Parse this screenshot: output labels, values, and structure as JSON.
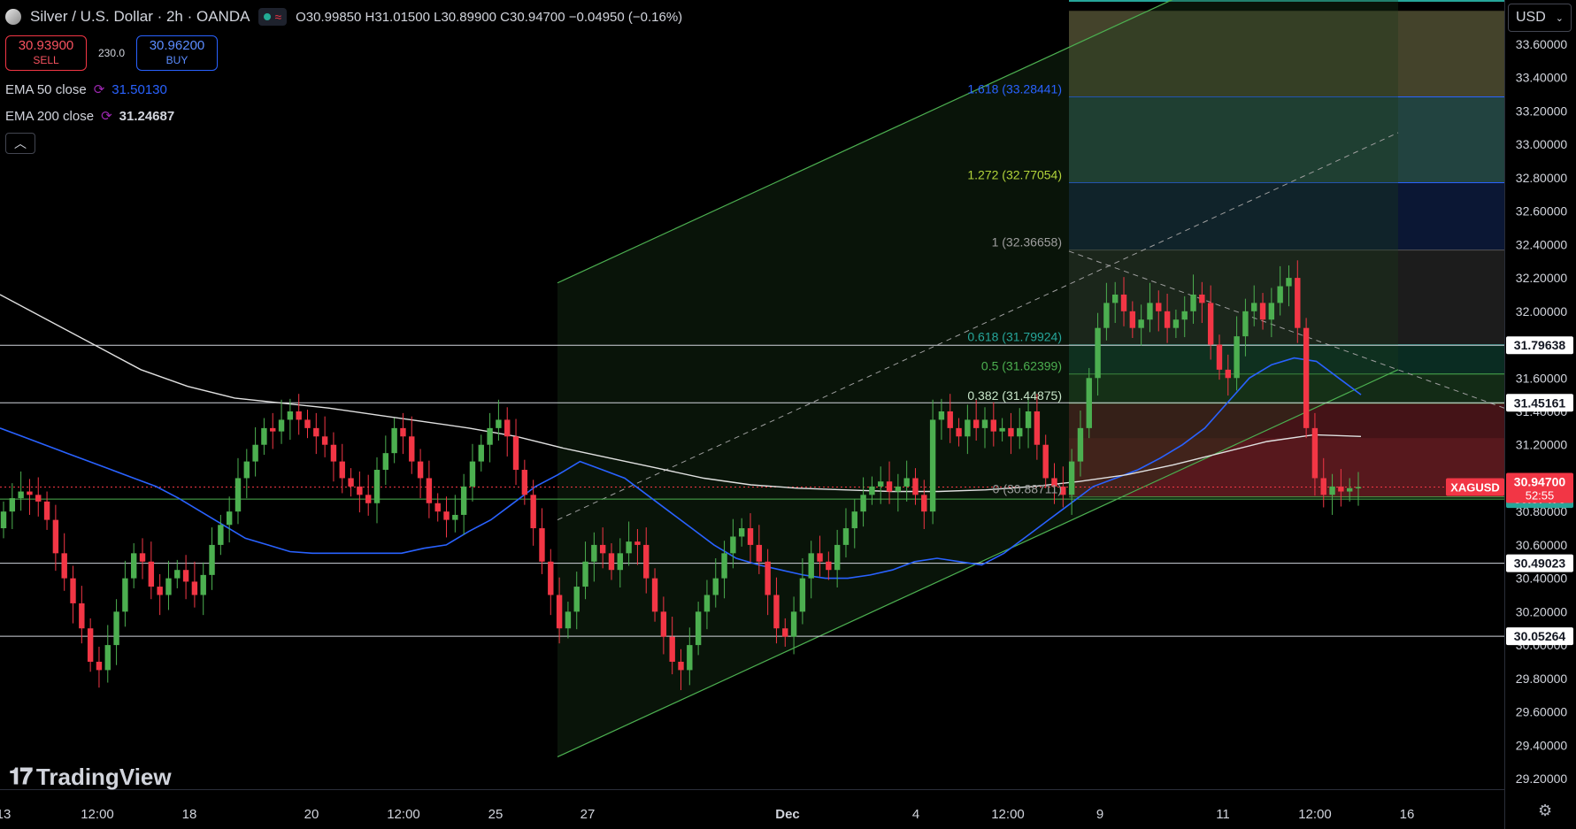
{
  "header": {
    "title": "Silver / U.S. Dollar · 2h · OANDA",
    "ohlc": "O30.99850 H31.01500 L30.89900 C30.94700 −0.04950 (−0.16%)"
  },
  "trade": {
    "sell_price": "30.93900",
    "sell_label": "SELL",
    "spread": "230.0",
    "buy_price": "30.96200",
    "buy_label": "BUY"
  },
  "indicators": [
    {
      "label": "EMA 50 close",
      "value": "31.50130"
    },
    {
      "label": "EMA 200 close",
      "value": "31.24687"
    }
  ],
  "currency": "USD",
  "brand": "TradingView",
  "colors": {
    "up": "#4caf50",
    "down": "#f23645",
    "ema50": "#2962ff",
    "ema200": "#e0e0e0",
    "channel": "#4caf50",
    "price_tag": "#f23645",
    "green_tag": "#26a69a"
  },
  "chart_data": {
    "type": "candlestick",
    "symbol": "XAGUSD",
    "timeframe": "2h",
    "ylim": [
      29.05,
      33.8
    ],
    "y_ticks": [
      "33.60000",
      "33.40000",
      "33.20000",
      "33.00000",
      "32.80000",
      "32.60000",
      "32.40000",
      "32.20000",
      "32.00000",
      "31.80000",
      "31.60000",
      "31.40000",
      "31.20000",
      "31.00000",
      "30.80000",
      "30.60000",
      "30.40000",
      "30.20000",
      "30.00000",
      "29.80000",
      "29.60000",
      "29.40000",
      "29.20000"
    ],
    "x_ticks": [
      "13",
      "12:00",
      "18",
      "20",
      "12:00",
      "25",
      "27",
      "Dec",
      "4",
      "12:00",
      "9",
      "11",
      "12:00",
      "16"
    ],
    "horizontal_levels": [
      "31.79638",
      "31.45161",
      "30.49023",
      "30.05264"
    ],
    "fibonacci": [
      {
        "label": "1.618 (33.28441)",
        "value": 33.28441
      },
      {
        "label": "1.272 (32.77054)",
        "value": 32.77054
      },
      {
        "label": "1 (32.36658)",
        "value": 32.36658
      },
      {
        "label": "0.618 (31.79924)",
        "value": 31.79924
      },
      {
        "label": "0.5 (31.62399)",
        "value": 31.62399
      },
      {
        "label": "0.382 (31.44875)",
        "value": 31.44875
      },
      {
        "label": "0 (30.88711)",
        "value": 30.88711
      }
    ],
    "price_tags": [
      {
        "label": "XAGUSD",
        "price": "30.94700",
        "countdown": "52:55"
      },
      {
        "price": "30.87478"
      }
    ],
    "closes": [
      30.8,
      30.88,
      30.92,
      30.9,
      30.86,
      30.75,
      30.55,
      30.4,
      30.25,
      30.1,
      29.9,
      29.85,
      30.0,
      30.2,
      30.4,
      30.55,
      30.5,
      30.35,
      30.3,
      30.4,
      30.45,
      30.38,
      30.3,
      30.42,
      30.6,
      30.72,
      30.8,
      31.0,
      31.1,
      31.2,
      31.3,
      31.28,
      31.35,
      31.4,
      31.35,
      31.3,
      31.25,
      31.2,
      31.1,
      31.0,
      30.95,
      30.9,
      30.85,
      31.05,
      31.15,
      31.3,
      31.25,
      31.1,
      31.0,
      30.85,
      30.8,
      30.75,
      30.78,
      30.95,
      31.1,
      31.2,
      31.3,
      31.35,
      31.25,
      31.05,
      30.9,
      30.7,
      30.5,
      30.3,
      30.1,
      30.2,
      30.35,
      30.5,
      30.6,
      30.55,
      30.45,
      30.55,
      30.62,
      30.6,
      30.4,
      30.2,
      30.05,
      29.9,
      29.85,
      30.0,
      30.2,
      30.3,
      30.4,
      30.55,
      30.65,
      30.7,
      30.6,
      30.5,
      30.3,
      30.1,
      30.05,
      30.2,
      30.4,
      30.55,
      30.5,
      30.45,
      30.6,
      30.7,
      30.8,
      30.9,
      30.95,
      30.98,
      30.92,
      30.95,
      31.0,
      30.9,
      30.8,
      31.35,
      31.4,
      31.3,
      31.25,
      31.35,
      31.3,
      31.35,
      31.28,
      31.3,
      31.25,
      31.3,
      31.4,
      31.2,
      31.0,
      30.95,
      30.9,
      31.1,
      31.3,
      31.6,
      31.9,
      32.05,
      32.1,
      32.0,
      31.9,
      31.95,
      32.05,
      32.0,
      31.9,
      31.95,
      32.0,
      32.1,
      32.05,
      31.8,
      31.65,
      31.6,
      31.85,
      32.0,
      32.05,
      31.95,
      32.05,
      32.15,
      32.2,
      31.9,
      31.3,
      31.0,
      30.9,
      30.95,
      30.92,
      30.94,
      30.947
    ],
    "ema50": [
      31.3,
      31.25,
      31.2,
      31.15,
      31.1,
      31.05,
      31.0,
      30.95,
      30.88,
      30.8,
      30.72,
      30.64,
      30.6,
      30.56,
      30.55,
      30.55,
      30.55,
      30.55,
      30.55,
      30.58,
      30.6,
      30.68,
      30.75,
      30.85,
      30.95,
      31.02,
      31.1,
      31.05,
      31.0,
      30.9,
      30.8,
      30.7,
      30.6,
      30.52,
      30.48,
      30.45,
      30.42,
      30.4,
      30.4,
      30.42,
      30.45,
      30.5,
      30.52,
      30.5,
      30.48,
      30.55,
      30.65,
      30.75,
      30.85,
      30.95,
      31.0,
      31.05,
      31.12,
      31.2,
      31.3,
      31.45,
      31.6,
      31.68,
      31.72,
      31.7,
      31.6,
      31.5
    ],
    "ema200": [
      32.1,
      31.95,
      31.8,
      31.65,
      31.55,
      31.48,
      31.45,
      31.42,
      31.38,
      31.34,
      31.3,
      31.25,
      31.18,
      31.12,
      31.06,
      31.0,
      30.96,
      30.94,
      30.93,
      30.92,
      30.92,
      30.93,
      30.95,
      30.98,
      31.02,
      31.08,
      31.15,
      31.22,
      31.26,
      31.25
    ]
  }
}
